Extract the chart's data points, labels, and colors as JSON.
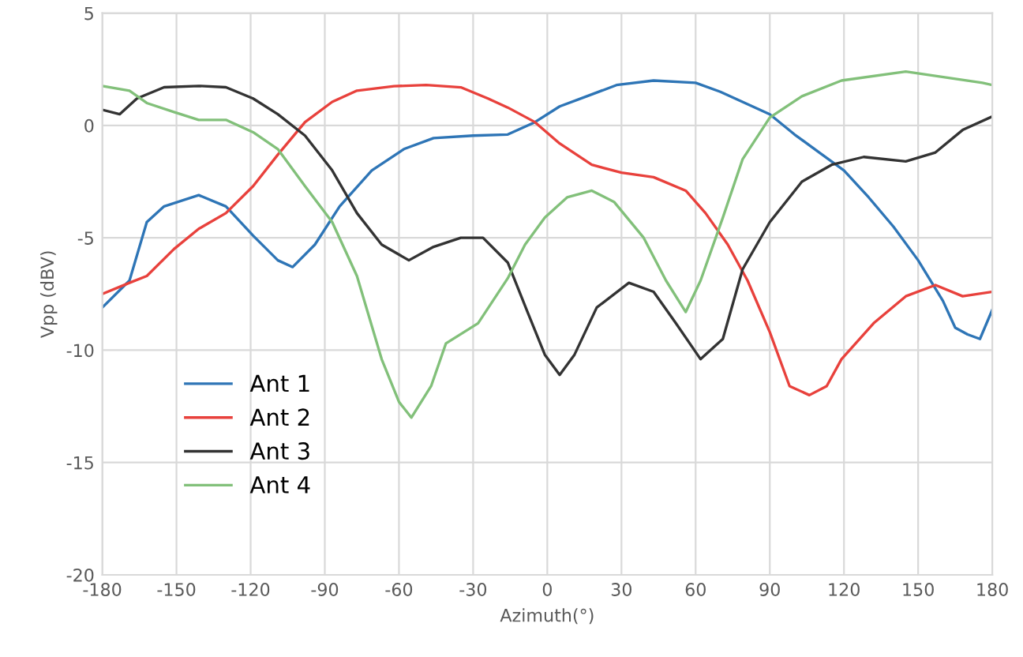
{
  "chart_data": {
    "type": "line",
    "xlabel": "Azimuth(°)",
    "ylabel": "Vpp (dBV)",
    "xlim": [
      -180,
      180
    ],
    "xticks": [
      -180,
      -150,
      -120,
      -90,
      -60,
      -30,
      0,
      30,
      60,
      90,
      120,
      150,
      180
    ],
    "ylim": [
      -20,
      5
    ],
    "yticks": [
      -20,
      -15,
      -10,
      -5,
      0,
      5
    ],
    "grid": true,
    "legend": "bottom left",
    "marker": "none",
    "line_style": "solid",
    "series": [
      {
        "name": "Ant 1",
        "color": "#2e75b6",
        "x": [
          -180,
          -169,
          -162,
          -155,
          -141,
          -130,
          -119,
          -109,
          -103,
          -94,
          -84,
          -71,
          -58,
          -46,
          -30,
          -16,
          -5,
          5,
          16,
          28,
          43,
          60,
          70,
          80,
          90,
          100,
          110,
          120,
          130,
          140,
          150,
          160,
          165,
          170,
          175,
          180
        ],
        "values": [
          -8.1,
          -6.9,
          -4.3,
          -3.6,
          -3.1,
          -3.6,
          -4.9,
          -6.0,
          -6.3,
          -5.3,
          -3.6,
          -2.0,
          -1.05,
          -0.56,
          -0.45,
          -0.4,
          0.15,
          0.85,
          1.3,
          1.8,
          2.0,
          1.9,
          1.5,
          1.0,
          0.5,
          -0.4,
          -1.2,
          -2.0,
          -3.2,
          -4.5,
          -6.0,
          -7.8,
          -9.0,
          -9.3,
          -9.5,
          -8.2
        ]
      },
      {
        "name": "Ant 2",
        "color": "#e8413c",
        "x": [
          -180,
          -169,
          -162,
          -151,
          -141,
          -130,
          -119,
          -109,
          -98,
          -87,
          -77,
          -62,
          -49,
          -35,
          -24,
          -16,
          -5,
          5,
          18,
          30,
          43,
          56,
          64,
          73,
          81,
          90,
          98,
          106,
          113,
          119,
          132,
          145,
          157,
          168,
          180
        ],
        "values": [
          -7.5,
          -7.0,
          -6.7,
          -5.5,
          -4.6,
          -3.9,
          -2.7,
          -1.3,
          0.15,
          1.05,
          1.55,
          1.75,
          1.8,
          1.7,
          1.2,
          0.8,
          0.15,
          -0.8,
          -1.75,
          -2.1,
          -2.3,
          -2.9,
          -3.9,
          -5.3,
          -6.9,
          -9.2,
          -11.6,
          -12.0,
          -11.6,
          -10.4,
          -8.8,
          -7.6,
          -7.1,
          -7.6,
          -7.4
        ]
      },
      {
        "name": "Ant 3",
        "color": "#333333",
        "x": [
          -180,
          -173,
          -166,
          -155,
          -141,
          -130,
          -119,
          -109,
          -98,
          -87,
          -77,
          -67,
          -56,
          -46,
          -35,
          -26,
          -16,
          -8,
          -1,
          5,
          11,
          20,
          33,
          43,
          52,
          62,
          71,
          79,
          90,
          103,
          115,
          128,
          145,
          157,
          168,
          180
        ],
        "values": [
          0.7,
          0.5,
          1.2,
          1.7,
          1.76,
          1.7,
          1.2,
          0.5,
          -0.45,
          -2.0,
          -3.9,
          -5.3,
          -6.0,
          -5.4,
          -5.0,
          -5.0,
          -6.1,
          -8.3,
          -10.2,
          -11.1,
          -10.2,
          -8.1,
          -7.0,
          -7.4,
          -8.8,
          -10.4,
          -9.5,
          -6.4,
          -4.3,
          -2.5,
          -1.75,
          -1.4,
          -1.6,
          -1.2,
          -0.2,
          0.4
        ]
      },
      {
        "name": "Ant 4",
        "color": "#82c07a",
        "x": [
          -180,
          -169,
          -162,
          -151,
          -141,
          -130,
          -119,
          -109,
          -98,
          -87,
          -77,
          -67,
          -60,
          -55,
          -47,
          -41,
          -28,
          -16,
          -9,
          -1,
          8,
          18,
          27,
          39,
          48,
          56,
          62,
          71,
          79,
          90,
          103,
          119,
          145,
          176,
          180
        ],
        "values": [
          1.76,
          1.55,
          1.0,
          0.6,
          0.25,
          0.25,
          -0.3,
          -1.05,
          -2.7,
          -4.3,
          -6.7,
          -10.4,
          -12.3,
          -13.0,
          -11.6,
          -9.7,
          -8.8,
          -6.8,
          -5.3,
          -4.1,
          -3.2,
          -2.9,
          -3.4,
          -5.0,
          -6.9,
          -8.3,
          -6.9,
          -4.1,
          -1.5,
          0.35,
          1.3,
          2.0,
          2.4,
          1.9,
          1.8
        ]
      }
    ]
  }
}
